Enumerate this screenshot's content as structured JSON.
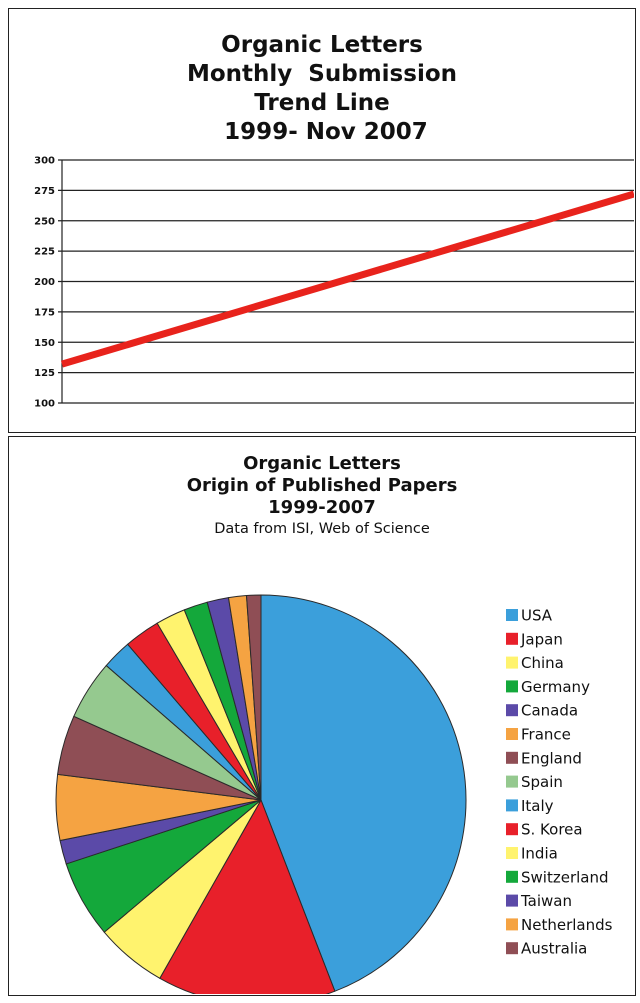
{
  "chart_data": [
    {
      "type": "line",
      "title_lines": [
        "Organic Letters",
        "Monthly  Submission",
        "Trend Line",
        " 1999- Nov 2007"
      ],
      "xlabel": "",
      "ylabel": "",
      "ylim": [
        100,
        300
      ],
      "yticks": [
        300,
        275,
        250,
        225,
        200,
        175,
        150,
        125,
        100
      ],
      "grid": true,
      "legend": "none",
      "series": [
        {
          "color": "#e8231c",
          "x": [
            "1999",
            "Nov 2007"
          ],
          "values": [
            132,
            272
          ]
        }
      ]
    },
    {
      "type": "pie",
      "title_lines": [
        "Organic Letters",
        "Origin of Published Papers",
        "1999-2007"
      ],
      "subtitle": "Data from ISI, Web of Science",
      "legend": "right",
      "labels": [
        "USA",
        "Japan",
        "China",
        "Germany",
        "Canada",
        "France",
        "England",
        "Spain",
        "Italy",
        "S. Korea",
        "India",
        "Switzerland",
        "Taiwan",
        "Netherlands",
        "Australia"
      ],
      "values": [
        47,
        15,
        6,
        6.5,
        2,
        5.5,
        5,
        5,
        2.5,
        3,
        2.5,
        2,
        1.8,
        1.5,
        1.2
      ],
      "colors": [
        "#3b9fdb",
        "#e8202a",
        "#fff36e",
        "#14a83b",
        "#5b4aa8",
        "#f5a342",
        "#8f4e55",
        "#95c98f",
        "#3b9fdb",
        "#e8202a",
        "#fff36e",
        "#14a83b",
        "#5b4aa8",
        "#f5a342",
        "#8f4e55"
      ]
    }
  ]
}
